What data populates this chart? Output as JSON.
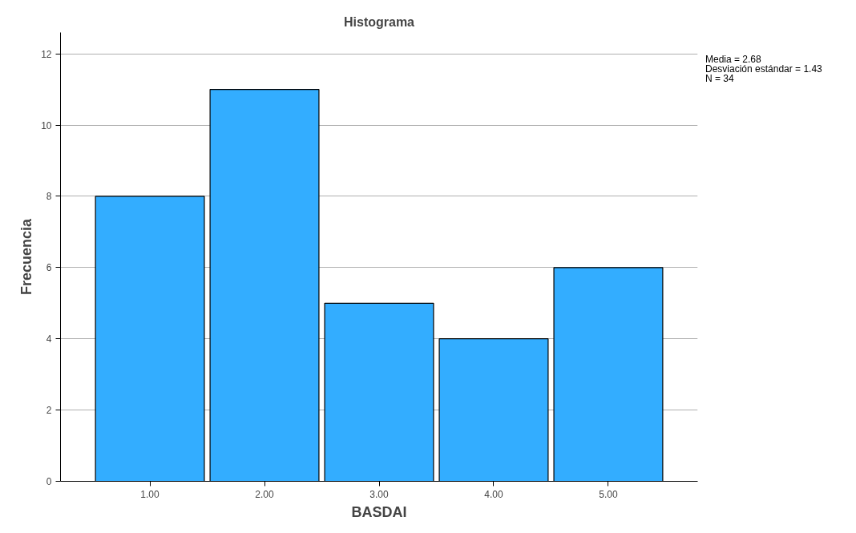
{
  "chart_data": {
    "type": "bar",
    "title": "Histograma",
    "xlabel": "BASDAI",
    "ylabel": "Frecuencia",
    "categories": [
      "1.00",
      "2.00",
      "3.00",
      "4.00",
      "5.00"
    ],
    "values": [
      8,
      11,
      5,
      4,
      6
    ],
    "color": "#33adff",
    "ylim": [
      0,
      12.6
    ],
    "yticks": [
      0,
      2,
      4,
      6,
      8,
      10,
      12
    ],
    "grid": "y",
    "annotations": [
      "Media = 2.68",
      "Desviación estándar = 1.43",
      "N = 34"
    ]
  }
}
